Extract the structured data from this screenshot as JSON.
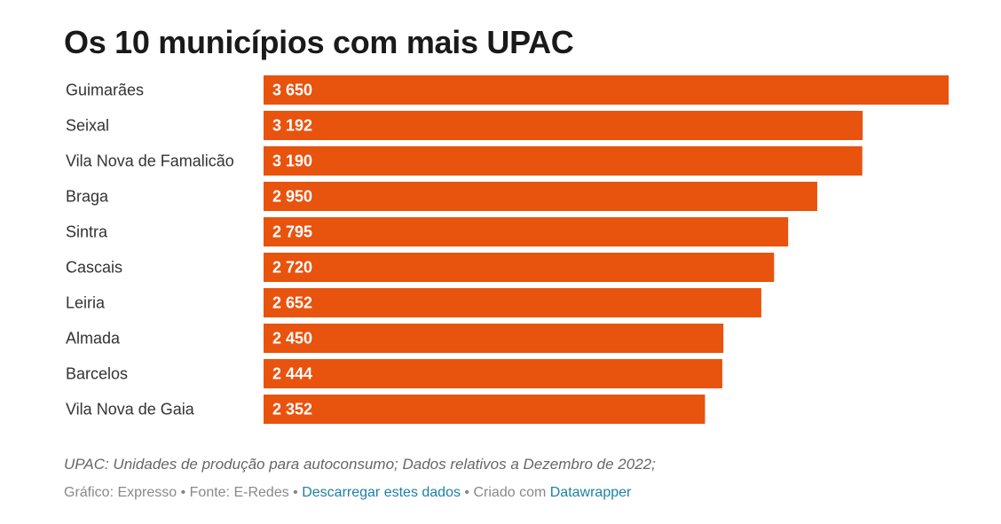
{
  "chart_data": {
    "type": "bar",
    "orientation": "horizontal",
    "title": "Os 10 municípios com mais UPAC",
    "categories": [
      "Guimarães",
      "Seixal",
      "Vila Nova de Famalicão",
      "Braga",
      "Sintra",
      "Cascais",
      "Leiria",
      "Almada",
      "Barcelos",
      "Vila Nova de Gaia"
    ],
    "values": [
      3650,
      3192,
      3190,
      2950,
      2795,
      2720,
      2652,
      2450,
      2444,
      2352
    ],
    "value_labels": [
      "3 650",
      "3 192",
      "3 190",
      "2 950",
      "2 795",
      "2 720",
      "2 652",
      "2 450",
      "2 444",
      "2 352"
    ],
    "xlim": [
      0,
      3650
    ],
    "bar_color": "#e8530e",
    "grid": false,
    "legend": "none"
  },
  "notes": "UPAC: Unidades de produção para autoconsumo; Dados relativos a Dezembro de 2022;",
  "footer": {
    "chart_by": "Gráfico: Expresso",
    "sep1": " • ",
    "source": "Fonte: E-Redes",
    "sep2": " • ",
    "download_link": "Descarregar estes dados",
    "sep3": " • ",
    "created_with": "Criado com ",
    "datawrapper_link": "Datawrapper"
  }
}
